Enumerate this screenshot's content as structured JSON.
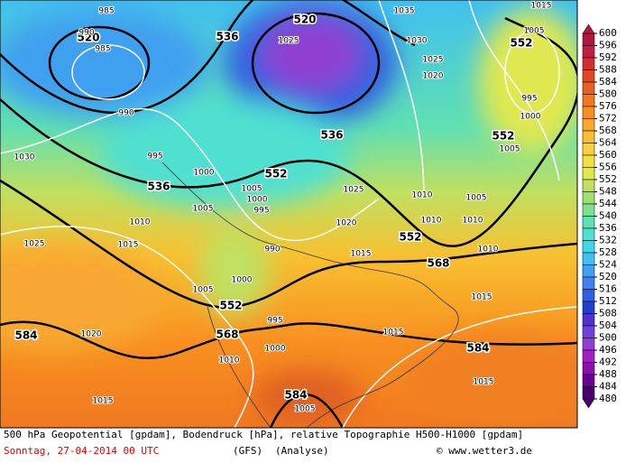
{
  "map": {
    "contour_labels": [
      "520",
      "536",
      "520",
      "552",
      "536",
      "552",
      "536",
      "552",
      "552",
      "568",
      "552",
      "568",
      "584",
      "584",
      "584"
    ],
    "isobar_labels": [
      "985",
      "990",
      "985",
      "1035",
      "1015",
      "1025",
      "1030",
      "1025",
      "1020",
      "1005",
      "995",
      "990",
      "1000",
      "1005",
      "1030",
      "995",
      "1000",
      "1005",
      "1000",
      "1005",
      "995",
      "1025",
      "1010",
      "1005",
      "1010",
      "1020",
      "1010",
      "1010",
      "1025",
      "1015",
      "990",
      "1015",
      "1010",
      "1000",
      "1005",
      "1015",
      "995",
      "1015",
      "1020",
      "1000",
      "1010",
      "1015",
      "1015",
      "1005"
    ]
  },
  "legend": {
    "values": [
      600,
      596,
      592,
      588,
      584,
      580,
      576,
      572,
      568,
      564,
      560,
      556,
      552,
      548,
      544,
      540,
      536,
      532,
      528,
      524,
      520,
      516,
      512,
      508,
      504,
      500,
      496,
      492,
      488,
      484,
      480
    ],
    "colors": [
      "#b01840",
      "#c02040",
      "#d03030",
      "#e04820",
      "#e86020",
      "#f07820",
      "#f89020",
      "#f8a830",
      "#f8c030",
      "#f8d040",
      "#f0e040",
      "#e0e850",
      "#c0e060",
      "#a0e070",
      "#80e090",
      "#60e0b0",
      "#50e0d0",
      "#40d8e8",
      "#40c0f0",
      "#40a0f0",
      "#4080f0",
      "#3060e0",
      "#2040d0",
      "#5030d0",
      "#7040d8",
      "#9040d0",
      "#a020c0",
      "#8a10a8",
      "#6a0090",
      "#4b006e"
    ]
  },
  "footer": {
    "line1": "500 hPa Geopotential [gpdam], Bodendruck [hPa], relative Topographie H500-H1000 [gpdam]",
    "date": "Sonntag, 27-04-2014  00 UTC",
    "model": "(GFS)",
    "run": "(Analyse)",
    "credit": "© www.wetter3.de"
  }
}
